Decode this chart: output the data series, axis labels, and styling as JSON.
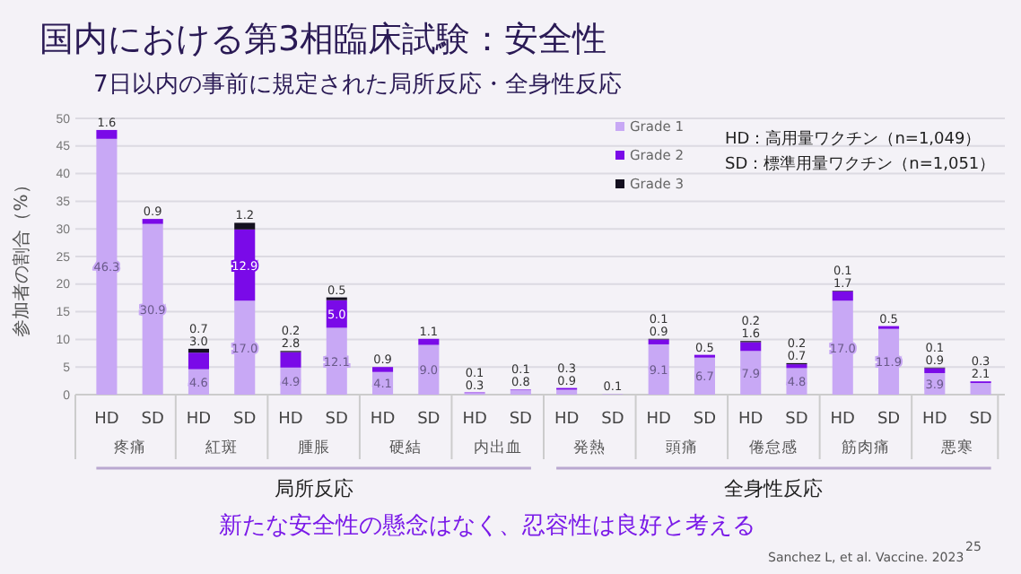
{
  "chart_data": {
    "type": "bar",
    "title": "国内における第3相臨床試験：安全性",
    "subtitle": "7日以内の事前に規定された局所反応・全身性反応",
    "ylabel": "参加者の割合（%）",
    "categories": [
      "HD",
      "SD",
      "HD",
      "SD",
      "HD",
      "SD",
      "HD",
      "SD",
      "HD",
      "SD",
      "HD",
      "SD",
      "HD",
      "SD",
      "HD",
      "SD",
      "HD",
      "SD",
      "HD",
      "SD"
    ],
    "stacked": true,
    "series": [
      {
        "name": "Grade 1",
        "color": "#c8a8f5",
        "values": [
          46.3,
          30.9,
          4.6,
          17.0,
          4.9,
          12.1,
          4.1,
          9.0,
          0.3,
          0.8,
          0.9,
          0.1,
          9.1,
          6.7,
          7.9,
          4.8,
          17.0,
          11.9,
          3.9,
          2.1
        ],
        "value_labels": [
          "46.3",
          "30.9",
          "4.6",
          "17.0",
          "4.9",
          "12.1",
          "4.1",
          "9.0",
          "0.3",
          "0.8",
          "0.9",
          "0.1",
          "9.1",
          "6.7",
          "7.9",
          "4.8",
          "17.0",
          "11.9",
          "3.9",
          "2.1"
        ]
      },
      {
        "name": "Grade 2",
        "color": "#7a0ae8",
        "values": [
          1.6,
          0.9,
          3.0,
          12.9,
          2.8,
          5.0,
          0.9,
          1.1,
          0.1,
          0.1,
          0.3,
          null,
          0.9,
          0.5,
          1.6,
          0.7,
          1.7,
          0.5,
          0.9,
          0.3
        ],
        "value_labels": [
          "1.6",
          "0.9",
          "3.0",
          "12.9",
          "2.8",
          "5.0",
          "0.9",
          "1.1",
          "0.1",
          "0.1",
          "0.3",
          null,
          "0.9",
          "0.5",
          "1.6",
          "0.7",
          "1.7",
          "0.5",
          "0.9",
          "0.3"
        ]
      },
      {
        "name": "Grade 3",
        "color": "#14101f",
        "values": [
          null,
          null,
          0.7,
          1.2,
          0.2,
          0.5,
          null,
          null,
          null,
          null,
          null,
          null,
          0.1,
          null,
          0.2,
          0.2,
          0.1,
          null,
          0.1,
          null
        ],
        "value_labels": [
          null,
          null,
          "0.7",
          "1.2",
          "0.2",
          "0.5",
          null,
          null,
          null,
          null,
          null,
          null,
          "0.1",
          null,
          "0.2",
          "0.2",
          "0.1",
          null,
          "0.1",
          null
        ]
      }
    ],
    "ylim": [
      0,
      50
    ],
    "yticks": [
      0,
      5,
      10,
      15,
      20,
      25,
      30,
      35,
      40,
      45,
      50
    ],
    "grid": "y",
    "legend": "top right",
    "annotations": [
      "疼痛",
      "紅斑",
      "腫脹",
      "硬結",
      "内出血",
      "発熱",
      "頭痛",
      "倦怠感",
      "筋肉痛",
      "悪寒",
      "局所反応",
      "全身性反応",
      "HD：高用量ワクチン（n=1,049）",
      "SD：標準用量ワクチン（n=1,051）",
      "新たな安全性の懸念はなく、忍容性は良好と考える",
      "Sanchez L, et al. Vaccine. 2023",
      "25"
    ]
  }
}
